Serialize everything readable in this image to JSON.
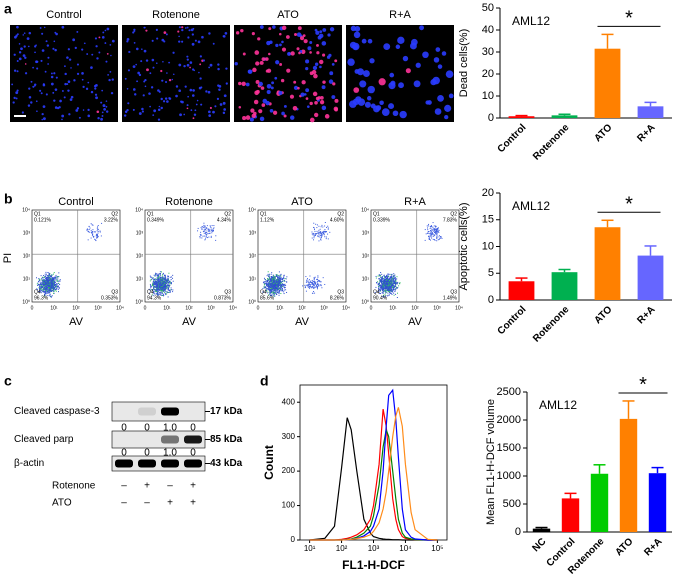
{
  "panel_labels": [
    "a",
    "b",
    "c",
    "d"
  ],
  "panel_a": {
    "images": [
      "Control",
      "Rotenone",
      "ATO",
      "R+A"
    ]
  },
  "panel_b": {
    "x_label": "AV",
    "y_label": "PI",
    "x_ticks": [
      "0",
      "10¹",
      "10²",
      "10³",
      "10⁴"
    ],
    "y_ticks": [
      "10⁰",
      "10¹",
      "10²",
      "10³",
      "10⁴"
    ],
    "plots": [
      {
        "title": "Control",
        "quadrants": [
          {
            "name": "Q1",
            "value": "0.121%"
          },
          {
            "name": "Q2",
            "value": "3.22%"
          },
          {
            "name": "Q4",
            "value": "96.3%"
          },
          {
            "name": "Q3",
            "value": "0.353%"
          }
        ]
      },
      {
        "title": "Rotenone",
        "quadrants": [
          {
            "name": "Q1",
            "value": "0.349%"
          },
          {
            "name": "Q2",
            "value": "4.34%"
          },
          {
            "name": "Q4",
            "value": "94.3%"
          },
          {
            "name": "Q3",
            "value": "0.873%"
          }
        ]
      },
      {
        "title": "ATO",
        "quadrants": [
          {
            "name": "Q1",
            "value": "1.12%"
          },
          {
            "name": "Q2",
            "value": "4.60%"
          },
          {
            "name": "Q4",
            "value": "85.6%"
          },
          {
            "name": "Q3",
            "value": "8.26%"
          }
        ]
      },
      {
        "title": "R+A",
        "quadrants": [
          {
            "name": "Q1",
            "value": "0.339%"
          },
          {
            "name": "Q2",
            "value": "7.83%"
          },
          {
            "name": "Q4",
            "value": "90.4%"
          },
          {
            "name": "Q3",
            "value": "1.49%"
          }
        ]
      }
    ]
  },
  "panel_c": {
    "blots": [
      {
        "label": "Cleaved caspase-3",
        "size": "17 kDa",
        "quant": [
          "0",
          "0",
          "1.0",
          "0"
        ]
      },
      {
        "label": "Cleaved parp",
        "size": "85 kDa",
        "quant": [
          "0",
          "0",
          "1.0",
          "0"
        ]
      },
      {
        "label": "β-actin",
        "size": "43 kDa"
      }
    ],
    "treatments": [
      {
        "label": "Rotenone",
        "signs": [
          "–",
          "+",
          "–",
          "+"
        ]
      },
      {
        "label": "ATO",
        "signs": [
          "–",
          "–",
          "+",
          "+"
        ]
      }
    ]
  },
  "chart_data": [
    {
      "type": "bar",
      "y_label": "Dead cells(%)",
      "annotation": "AML12",
      "significance": "*",
      "categories": [
        "Control",
        "Rotenone",
        "ATO",
        "R+A"
      ],
      "values": [
        0.8,
        1.2,
        31.5,
        5.3
      ],
      "errors": [
        0.3,
        0.5,
        6.5,
        1.8
      ],
      "colors": [
        "#ff0000",
        "#00b050",
        "#ff8000",
        "#6666ff"
      ],
      "ylim": [
        0,
        50
      ],
      "yticks": [
        0,
        10,
        20,
        30,
        40,
        50
      ]
    },
    {
      "type": "bar",
      "y_label": "Apoptotic cells(%)",
      "annotation": "AML12",
      "significance": "*",
      "categories": [
        "Control",
        "Rotenone",
        "ATO",
        "R+A"
      ],
      "values": [
        3.5,
        5.2,
        13.6,
        8.3
      ],
      "errors": [
        0.6,
        0.5,
        1.3,
        1.8
      ],
      "colors": [
        "#ff0000",
        "#00b050",
        "#ff8000",
        "#6666ff"
      ],
      "ylim": [
        0,
        20
      ],
      "yticks": [
        0,
        5,
        10,
        15,
        20
      ]
    },
    {
      "type": "bar",
      "y_label": "Mean FL1-H-DCF volume",
      "annotation": "AML12",
      "significance": "*",
      "categories": [
        "NC",
        "Control",
        "Rotenone",
        "ATO",
        "R+A"
      ],
      "values": [
        60,
        600,
        1040,
        2020,
        1050
      ],
      "errors": [
        20,
        90,
        160,
        320,
        100
      ],
      "colors": [
        "#000000",
        "#ff0000",
        "#00cc00",
        "#ff8000",
        "#0000ff"
      ],
      "ylim": [
        0,
        2500
      ],
      "yticks": [
        0,
        500,
        1000,
        1500,
        2000,
        2500
      ]
    },
    {
      "type": "line",
      "x_label": "FL1-H-DCF",
      "y_label": "Count",
      "log_x": true,
      "x": [
        10,
        30,
        60,
        100,
        150,
        200,
        300,
        500,
        800,
        1000,
        1500,
        2000,
        2500,
        3000,
        4000,
        5000,
        6000,
        8000,
        10000,
        15000,
        20000,
        50000,
        100000
      ],
      "series": [
        {
          "color": "#000000",
          "values": [
            0,
            5,
            40,
            210,
            355,
            320,
            200,
            60,
            20,
            10,
            5,
            3,
            2,
            2,
            1,
            1,
            1,
            0,
            0,
            0,
            0,
            0,
            0
          ]
        },
        {
          "color": "#ff0000",
          "values": [
            0,
            0,
            0,
            2,
            5,
            8,
            15,
            30,
            60,
            100,
            220,
            380,
            330,
            250,
            120,
            60,
            30,
            10,
            5,
            2,
            1,
            0,
            0
          ]
        },
        {
          "color": "#008000",
          "values": [
            0,
            0,
            0,
            0,
            2,
            3,
            8,
            20,
            40,
            70,
            160,
            270,
            320,
            300,
            200,
            120,
            60,
            20,
            8,
            3,
            1,
            0,
            0
          ]
        },
        {
          "color": "#0000ff",
          "values": [
            0,
            0,
            0,
            0,
            1,
            2,
            5,
            12,
            25,
            40,
            90,
            200,
            330,
            420,
            435,
            350,
            240,
            90,
            30,
            8,
            3,
            0,
            0
          ]
        },
        {
          "color": "#ff8c1a",
          "values": [
            0,
            0,
            0,
            0,
            1,
            2,
            4,
            8,
            15,
            25,
            50,
            90,
            140,
            200,
            300,
            360,
            385,
            330,
            220,
            80,
            30,
            2,
            0
          ]
        }
      ],
      "xlim": [
        5,
        200000
      ],
      "ylim": [
        0,
        450
      ],
      "xticks": [
        {
          "value": 10,
          "label": "10¹"
        },
        {
          "value": 100,
          "label": "10²"
        },
        {
          "value": 1000,
          "label": "10³"
        },
        {
          "value": 10000,
          "label": "10⁴"
        },
        {
          "value": 100000,
          "label": "10⁵"
        }
      ],
      "yticks": [
        0,
        100,
        200,
        300,
        400
      ]
    }
  ]
}
